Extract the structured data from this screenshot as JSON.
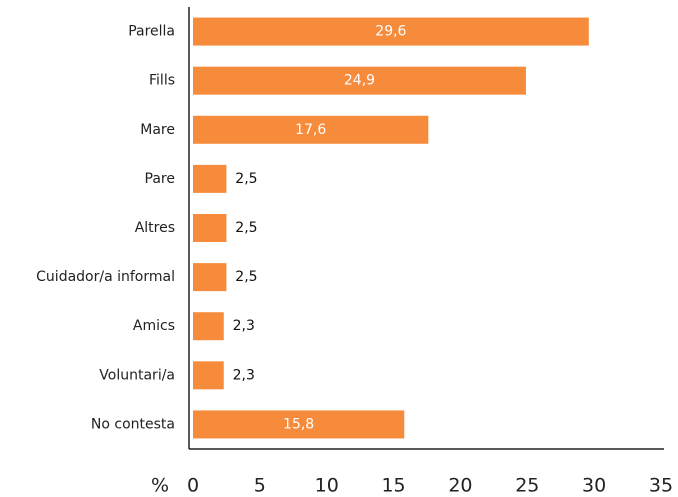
{
  "chart_data": {
    "type": "bar",
    "orientation": "horizontal",
    "categories": [
      "Parella",
      "Fills",
      "Mare",
      "Pare",
      "Altres",
      "Cuidador/a informal",
      "Amics",
      "Voluntari/a",
      "No contesta"
    ],
    "values": [
      29.6,
      24.9,
      17.6,
      2.5,
      2.5,
      2.5,
      2.3,
      2.3,
      15.8
    ],
    "value_labels": [
      "29,6",
      "24,9",
      "17,6",
      "2,5",
      "2,5",
      "2,5",
      "2,3",
      "2,3",
      "15,8"
    ],
    "color": "#f68b3b",
    "xlabel": "%",
    "xlim": [
      0,
      35
    ],
    "xticks": [
      0,
      5,
      10,
      15,
      20,
      25,
      30,
      35
    ],
    "grid": false
  }
}
